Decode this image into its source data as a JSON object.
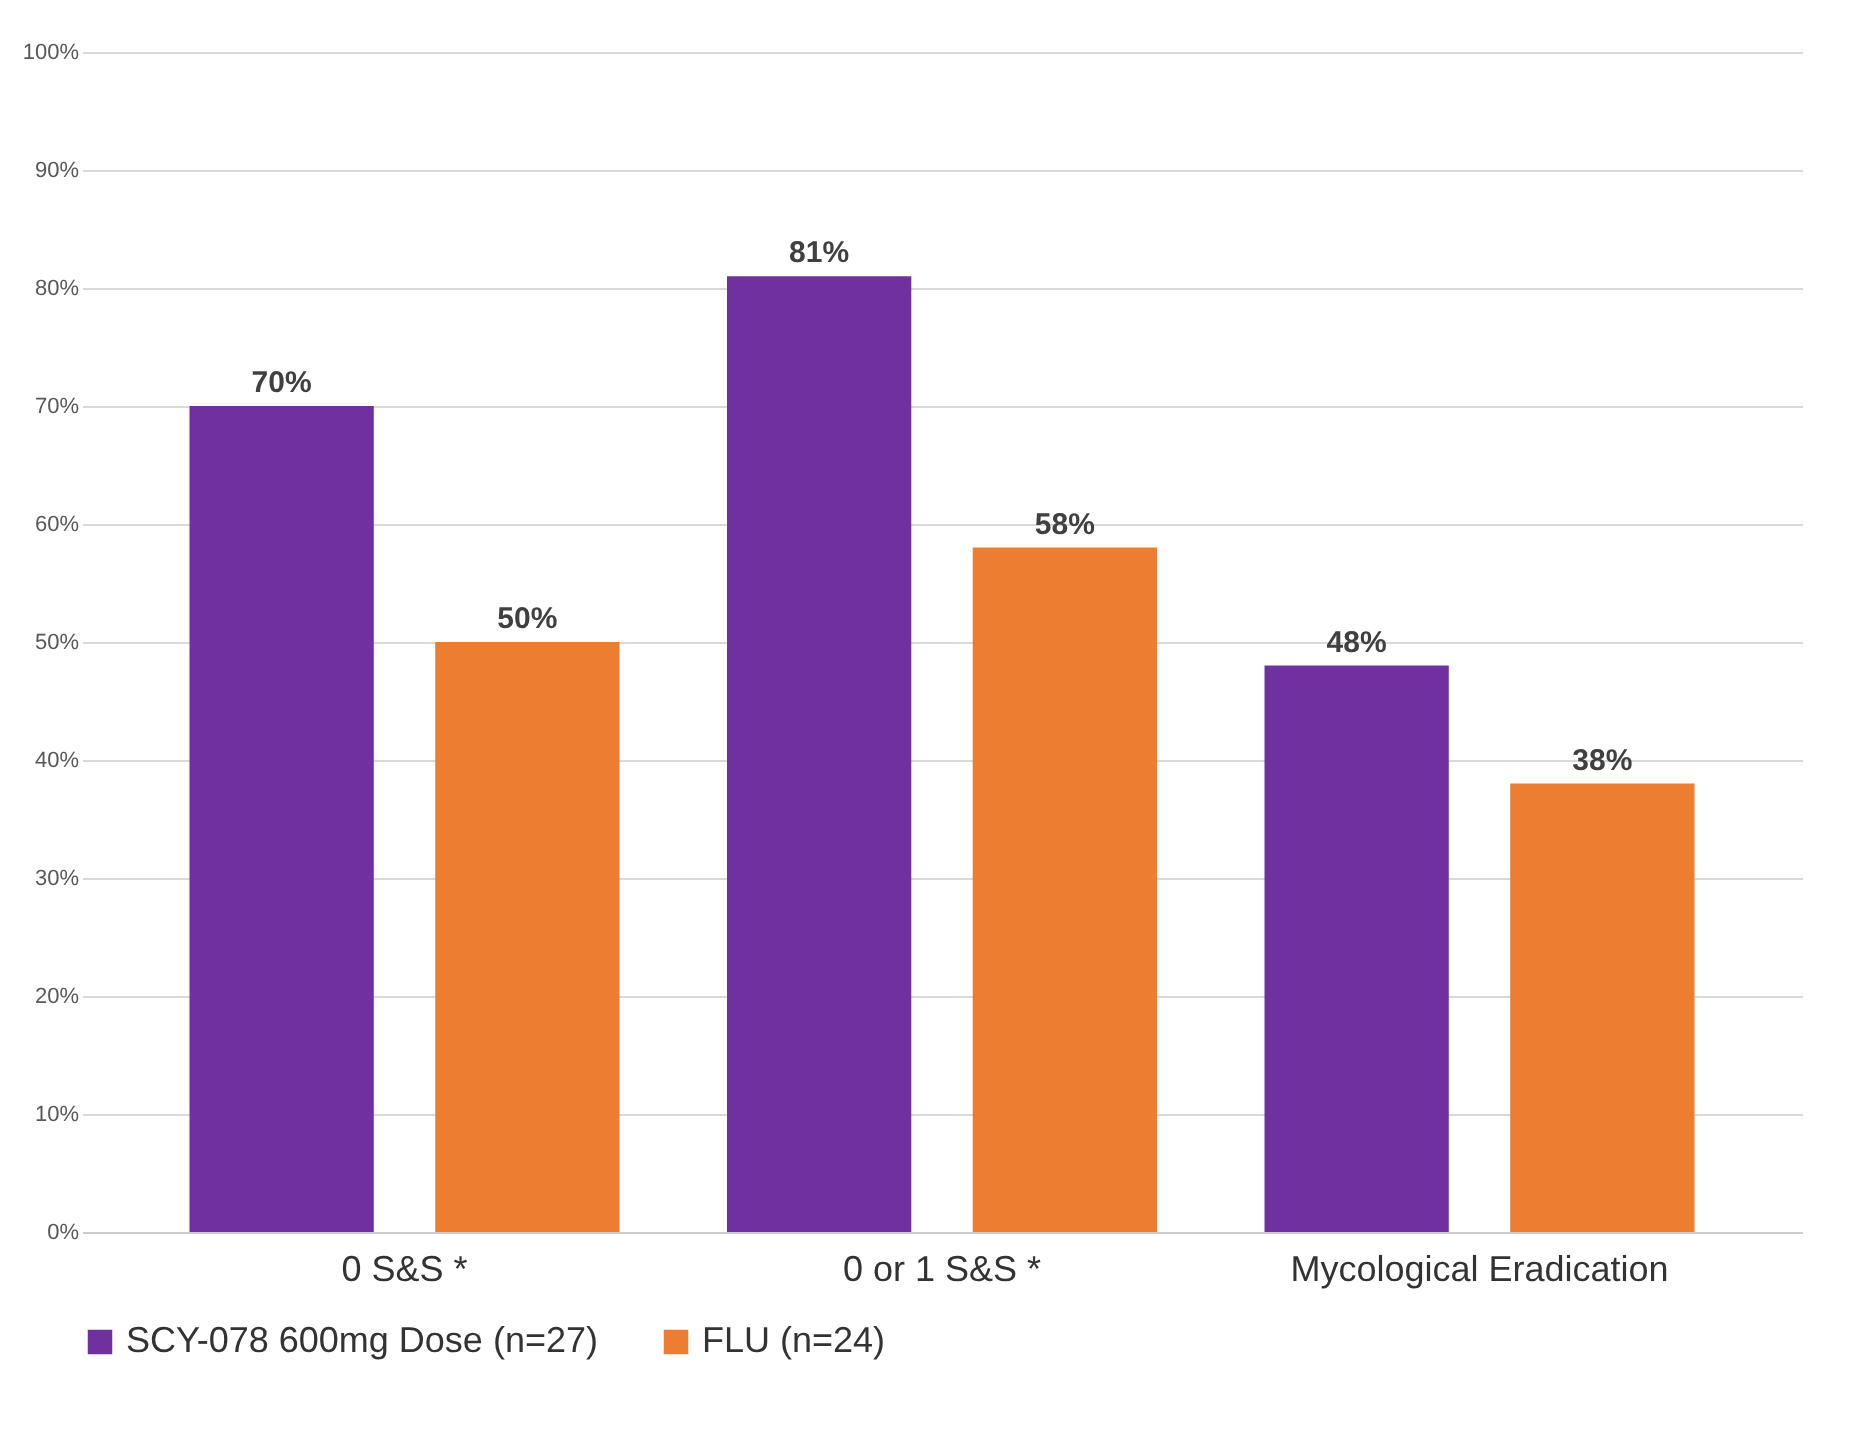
{
  "chart_data": {
    "type": "bar",
    "categories": [
      "0 S&S *",
      "0 or 1 S&S *",
      "Mycological Eradication"
    ],
    "series": [
      {
        "name": "SCY-078 600mg Dose (n=27)",
        "color": "#7030a0",
        "values": [
          70,
          81,
          48
        ],
        "value_labels": [
          "70%",
          "81%",
          "48%"
        ]
      },
      {
        "name": "FLU (n=24)",
        "color": "#ed7d31",
        "values": [
          50,
          58,
          38
        ],
        "value_labels": [
          "50%",
          "58%",
          "38%"
        ]
      }
    ],
    "ylim": [
      0,
      100
    ],
    "yticks": [
      {
        "value": 0,
        "label": "0%"
      },
      {
        "value": 10,
        "label": "10%"
      },
      {
        "value": 20,
        "label": "20%"
      },
      {
        "value": 30,
        "label": "30%"
      },
      {
        "value": 40,
        "label": "40%"
      },
      {
        "value": 50,
        "label": "50%"
      },
      {
        "value": 60,
        "label": "60%"
      },
      {
        "value": 70,
        "label": "70%"
      },
      {
        "value": 80,
        "label": "80%"
      },
      {
        "value": 90,
        "label": "90%"
      },
      {
        "value": 100,
        "label": "100%"
      }
    ],
    "grid": "y",
    "legend": "bottom"
  }
}
